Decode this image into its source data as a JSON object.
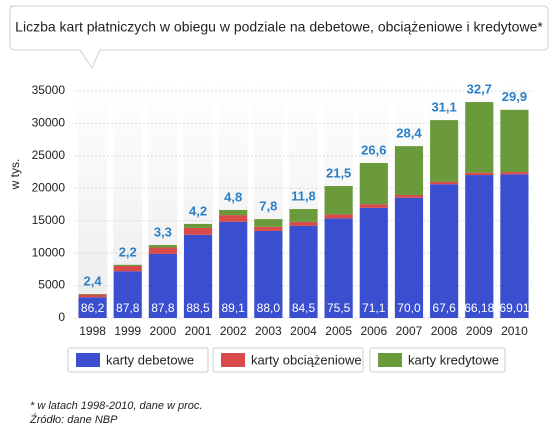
{
  "chart_data": {
    "type": "stacked-bar",
    "title": "Liczba kart płatniczych w obiegu w podziale na debetowe, obciążeniowe i kredytowe*",
    "y_label": "w tys.",
    "categories": [
      "1998",
      "1999",
      "2000",
      "2001",
      "2002",
      "2003",
      "2004",
      "2005",
      "2006",
      "2007",
      "2008",
      "2009",
      "2010"
    ],
    "series": [
      {
        "name": "karty debetowe",
        "color": "#3a4fd0",
        "values": [
          3190,
          7200,
          9880,
          12830,
          14840,
          13420,
          14200,
          15360,
          16990,
          18550,
          20620,
          22040,
          22150
        ]
      },
      {
        "name": "karty obciążeniowe",
        "color": "#d94a4a",
        "values": [
          420,
          820,
          1000,
          1060,
          1020,
          640,
          620,
          610,
          550,
          420,
          400,
          370,
          350
        ]
      },
      {
        "name": "karty kredytowe",
        "color": "#6a9a3c",
        "values": [
          90,
          180,
          370,
          610,
          800,
          1190,
          1980,
          4380,
          6360,
          7530,
          9490,
          10890,
          9600
        ]
      }
    ],
    "bottom_labels": [
      "86,2",
      "87,8",
      "87,8",
      "88,5",
      "89,1",
      "88,0",
      "84,5",
      "75,5",
      "71,1",
      "70,0",
      "67,6",
      "66,18",
      "69,01"
    ],
    "top_labels": [
      "2,4",
      "2,2",
      "3,3",
      "4,2",
      "4,8",
      "7,8",
      "11,8",
      "21,5",
      "26,6",
      "28,4",
      "31,1",
      "32,7",
      "29,9"
    ],
    "ylim": [
      0,
      35000
    ],
    "yticks": [
      0,
      5000,
      10000,
      15000,
      20000,
      25000,
      30000,
      35000
    ],
    "grid": true,
    "footnotes": [
      "* w latach 1998-2010, dane w proc.",
      "Źródło: dane NBP"
    ]
  }
}
